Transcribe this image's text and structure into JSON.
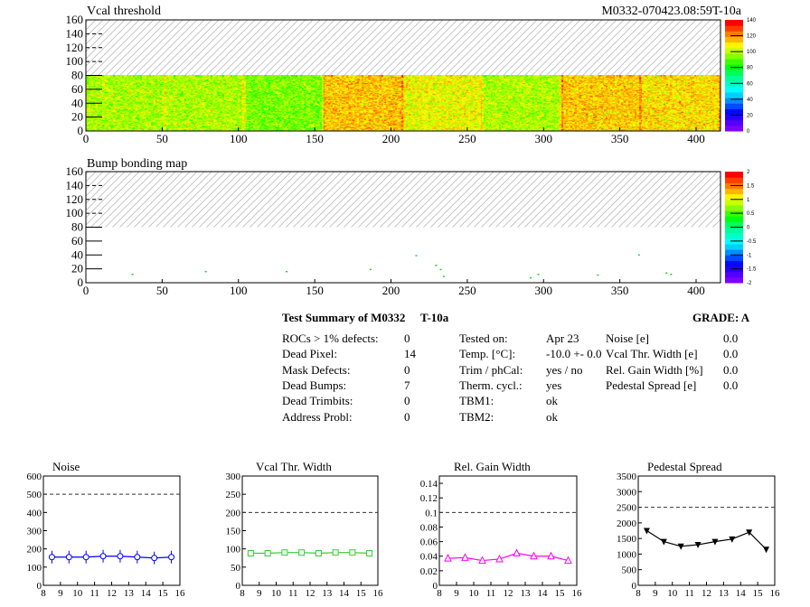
{
  "header": {
    "title_left": "Vcal threshold",
    "title_right": "M0332-070423.08:59T-10a"
  },
  "summary": {
    "title": "Test Summary of M0332",
    "test": "T-10a",
    "grade": "GRADE:  A",
    "col1": [
      [
        "ROCs > 1% defects:",
        "0"
      ],
      [
        "Dead Pixel:",
        "14"
      ],
      [
        "Mask Defects:",
        "0"
      ],
      [
        "Dead Bumps:",
        "7"
      ],
      [
        "Dead Trimbits:",
        "0"
      ],
      [
        "Address Probl:",
        "0"
      ]
    ],
    "col2": [
      [
        "Tested on:",
        "Apr 23"
      ],
      [
        "Temp. [°C]:",
        "-10.0 +- 0.0"
      ],
      [
        "Trim / phCal:",
        "yes / no"
      ],
      [
        "Therm. cycl.:",
        "yes"
      ],
      [
        "TBM1:",
        "ok"
      ],
      [
        "TBM2:",
        "ok"
      ]
    ],
    "col3": [
      [
        "Noise [e]",
        "0.0"
      ],
      [
        "Vcal Thr. Width [e]",
        "0.0"
      ],
      [
        "Rel. Gain Width [%]",
        "0.0"
      ],
      [
        "Pedestal Spread [e]",
        "0.0"
      ]
    ]
  },
  "chart_data": [
    {
      "type": "heatmap",
      "title": "Vcal threshold",
      "xlim": [
        0,
        416
      ],
      "ylim": [
        0,
        160
      ],
      "xticks": [
        0,
        50,
        100,
        150,
        200,
        250,
        300,
        350,
        400
      ],
      "yticks": [
        0,
        20,
        40,
        60,
        80,
        100,
        120,
        140,
        160
      ],
      "filled_rows": [
        0,
        80
      ],
      "roc_boundaries": [
        0,
        52,
        104,
        156,
        208,
        260,
        312,
        364,
        416
      ],
      "roc_mean": [
        100,
        100,
        95,
        116,
        108,
        100,
        115,
        113
      ],
      "zlim": [
        0,
        140
      ],
      "zticks": [
        0,
        20,
        40,
        60,
        80,
        100,
        120,
        140
      ]
    },
    {
      "type": "heatmap",
      "title": "Bump bonding map",
      "xlim": [
        0,
        416
      ],
      "ylim": [
        0,
        160
      ],
      "xticks": [
        0,
        50,
        100,
        150,
        200,
        250,
        300,
        350,
        400
      ],
      "yticks": [
        0,
        20,
        40,
        60,
        80,
        100,
        120,
        140,
        160
      ],
      "zlim": [
        -2,
        2
      ],
      "zticks": [
        "-2",
        "-1.5",
        "-1",
        "-0.5",
        "0",
        "0.5",
        "1",
        "1.5",
        "2"
      ],
      "points": [
        [
          30,
          13
        ],
        [
          78,
          17
        ],
        [
          131,
          17
        ],
        [
          186,
          20
        ],
        [
          216,
          40
        ],
        [
          229,
          26
        ],
        [
          232,
          20
        ],
        [
          234,
          10
        ],
        [
          291,
          8
        ],
        [
          296,
          13
        ],
        [
          335,
          12
        ],
        [
          362,
          41
        ],
        [
          380,
          15
        ],
        [
          383,
          13
        ]
      ]
    },
    {
      "type": "line",
      "title": "Noise",
      "x": [
        8.5,
        9.5,
        10.5,
        11.5,
        12.5,
        13.5,
        14.5,
        15.5
      ],
      "y": [
        155,
        155,
        155,
        160,
        160,
        155,
        150,
        155
      ],
      "xlim": [
        8,
        16
      ],
      "ylim": [
        0,
        600
      ],
      "yticks": [
        "0",
        "100",
        "200",
        "300",
        "400",
        "500",
        "600"
      ],
      "xticks": [
        "8",
        "9",
        "10",
        "11",
        "12",
        "13",
        "14",
        "15",
        "16"
      ],
      "limit": 500,
      "color": "#0000ff",
      "marker": "circle"
    },
    {
      "type": "line",
      "title": "Vcal Thr. Width",
      "x": [
        8.5,
        9.5,
        10.5,
        11.5,
        12.5,
        13.5,
        14.5,
        15.5
      ],
      "y": [
        88,
        88,
        90,
        90,
        88,
        90,
        90,
        88
      ],
      "xlim": [
        8,
        16
      ],
      "ylim": [
        0,
        300
      ],
      "yticks": [
        "0",
        "50",
        "100",
        "150",
        "200",
        "250",
        "300"
      ],
      "xticks": [
        "8",
        "9",
        "10",
        "11",
        "12",
        "13",
        "14",
        "15",
        "16"
      ],
      "limit": 200,
      "color": "#33cc33",
      "marker": "square"
    },
    {
      "type": "line",
      "title": "Rel. Gain Width",
      "x": [
        8.5,
        9.5,
        10.5,
        11.5,
        12.5,
        13.5,
        14.5,
        15.5
      ],
      "y": [
        0.037,
        0.038,
        0.034,
        0.036,
        0.044,
        0.04,
        0.04,
        0.034
      ],
      "xlim": [
        8,
        16
      ],
      "ylim": [
        0,
        0.15
      ],
      "yticks": [
        "0",
        "0.02",
        "0.04",
        "0.06",
        "0.08",
        "0.1",
        "0.12",
        "0.14"
      ],
      "xticks": [
        "8",
        "9",
        "10",
        "11",
        "12",
        "13",
        "14",
        "15",
        "16"
      ],
      "limit": 0.1,
      "color": "#ff00ff",
      "marker": "triangle"
    },
    {
      "type": "line",
      "title": "Pedestal Spread",
      "x": [
        8.5,
        9.5,
        10.5,
        11.5,
        12.5,
        13.5,
        14.5,
        15.5
      ],
      "y": [
        1750,
        1400,
        1250,
        1300,
        1400,
        1480,
        1700,
        1150
      ],
      "xlim": [
        8,
        16
      ],
      "ylim": [
        0,
        3500
      ],
      "yticks": [
        "0",
        "500",
        "1000",
        "1500",
        "2000",
        "2500",
        "3000",
        "3500"
      ],
      "xticks": [
        "8",
        "9",
        "10",
        "11",
        "12",
        "13",
        "14",
        "15",
        "16"
      ],
      "limit": 2500,
      "color": "#000000",
      "marker": "triangle-down"
    }
  ]
}
